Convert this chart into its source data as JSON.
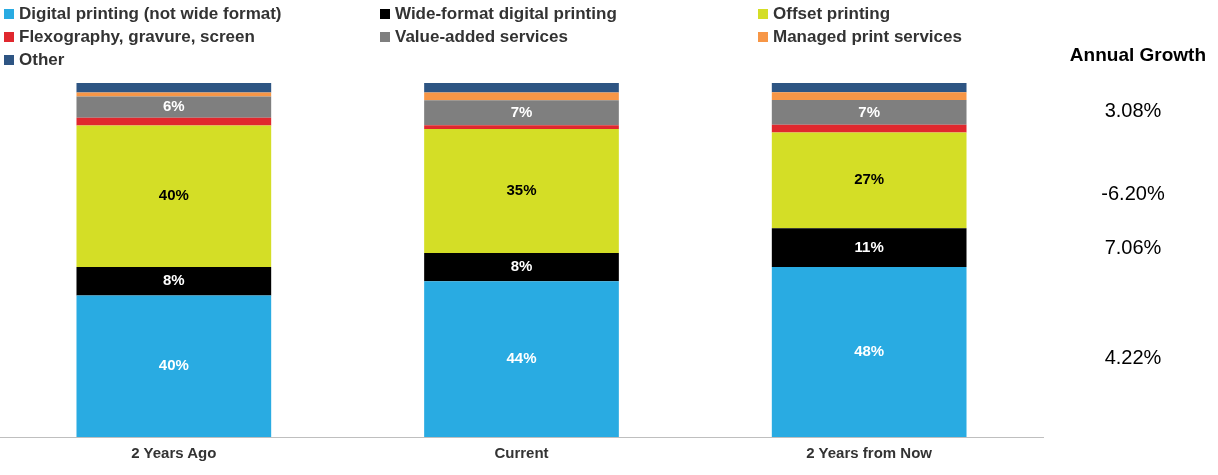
{
  "chart_data": {
    "type": "bar",
    "stacked": true,
    "categories": [
      "2 Years Ago",
      "Current",
      "2 Years from Now"
    ],
    "series": [
      {
        "name": "Digital printing (not wide format)",
        "color": "#29abe2",
        "values": [
          40,
          44,
          48
        ],
        "value_labels": [
          "40%",
          "44%",
          "48%"
        ]
      },
      {
        "name": "Wide-format digital printing",
        "color": "#000000",
        "values": [
          8,
          8,
          11
        ],
        "value_labels": [
          "8%",
          "8%",
          "11%"
        ]
      },
      {
        "name": "Offset printing",
        "color": "#d4de26",
        "values": [
          40,
          35,
          27
        ],
        "value_labels": [
          "40%",
          "35%",
          "27%"
        ]
      },
      {
        "name": "Flexography, gravure, screen",
        "color": "#e0282e",
        "values": [
          2.2,
          1.1,
          2.2
        ],
        "value_labels": [
          null,
          null,
          null
        ]
      },
      {
        "name": "Value-added services",
        "color": "#7f7f7f",
        "values": [
          6,
          7,
          7
        ],
        "value_labels": [
          "6%",
          "7%",
          "7%"
        ]
      },
      {
        "name": "Managed print services",
        "color": "#f79646",
        "values": [
          1.1,
          2.2,
          2.2
        ],
        "value_labels": [
          null,
          null,
          null
        ]
      },
      {
        "name": "Other",
        "color": "#2e5583",
        "values": [
          2.8,
          2.8,
          2.8
        ],
        "value_labels": [
          null,
          null,
          null
        ]
      }
    ],
    "ylim": [
      0,
      100
    ],
    "tick_labels": "x",
    "grid": false,
    "legend": "top",
    "annotations": [
      "Annual Growth",
      "3.08%",
      "-6.20%",
      "7.06%",
      "4.22%"
    ]
  }
}
